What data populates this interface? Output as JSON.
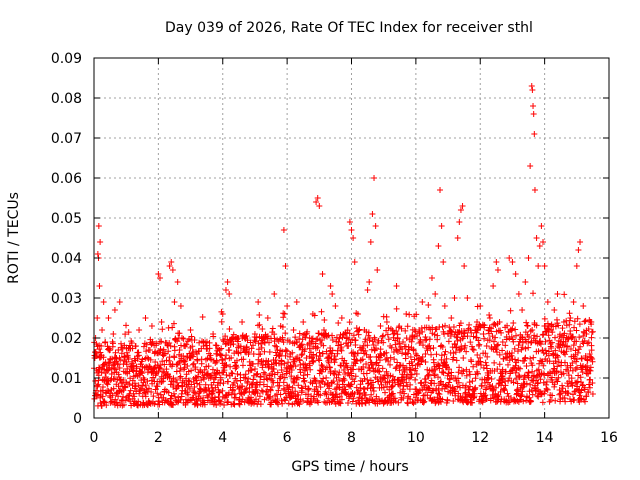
{
  "chart_data": {
    "type": "scatter",
    "title": "Day 039 of 2026, Rate Of TEC Index for receiver sthl",
    "xlabel": "GPS time / hours",
    "ylabel": "ROTI / TECUs",
    "xlim": [
      0,
      16
    ],
    "ylim": [
      0,
      0.09
    ],
    "x_ticks": [
      0,
      2,
      4,
      6,
      8,
      10,
      12,
      14,
      16
    ],
    "y_ticks": [
      0,
      0.01,
      0.02,
      0.03,
      0.04,
      0.05,
      0.06,
      0.07,
      0.08,
      0.09
    ],
    "x_tick_labels": [
      "0",
      "2",
      "4",
      "6",
      "8",
      "10",
      "12",
      "14",
      "16"
    ],
    "y_tick_labels": [
      "0",
      "0.01",
      "0.02",
      "0.03",
      "0.04",
      "0.05",
      "0.06",
      "0.07",
      "0.08",
      "0.09"
    ],
    "grid": true,
    "marker": "+",
    "color": "#ff0000",
    "series": [
      {
        "name": "ROTI",
        "points": [
          [
            0.02,
            0.015
          ],
          [
            0.05,
            0.02
          ],
          [
            0.08,
            0.012
          ],
          [
            0.1,
            0.025
          ],
          [
            0.12,
            0.041
          ],
          [
            0.14,
            0.04
          ],
          [
            0.15,
            0.048
          ],
          [
            0.17,
            0.033
          ],
          [
            0.19,
            0.044
          ],
          [
            0.22,
            0.018
          ],
          [
            0.25,
            0.022
          ],
          [
            0.3,
            0.029
          ],
          [
            0.35,
            0.019
          ],
          [
            0.4,
            0.013
          ],
          [
            0.45,
            0.025
          ],
          [
            0.5,
            0.017
          ],
          [
            0.55,
            0.011
          ],
          [
            0.6,
            0.021
          ],
          [
            0.65,
            0.027
          ],
          [
            0.7,
            0.015
          ],
          [
            0.8,
            0.029
          ],
          [
            0.9,
            0.009
          ],
          [
            1.0,
            0.014
          ],
          [
            1.1,
            0.006
          ],
          [
            1.2,
            0.012
          ],
          [
            1.3,
            0.018
          ],
          [
            1.4,
            0.022
          ],
          [
            1.5,
            0.008
          ],
          [
            1.6,
            0.025
          ],
          [
            1.7,
            0.017
          ],
          [
            1.8,
            0.023
          ],
          [
            1.9,
            0.014
          ],
          [
            2.0,
            0.036
          ],
          [
            2.05,
            0.035
          ],
          [
            2.1,
            0.024
          ],
          [
            2.2,
            0.016
          ],
          [
            2.3,
            0.011
          ],
          [
            2.35,
            0.038
          ],
          [
            2.4,
            0.039
          ],
          [
            2.45,
            0.037
          ],
          [
            2.5,
            0.029
          ],
          [
            2.6,
            0.034
          ],
          [
            2.7,
            0.028
          ],
          [
            2.8,
            0.018
          ],
          [
            2.9,
            0.013
          ],
          [
            3.0,
            0.022
          ],
          [
            3.1,
            0.009
          ],
          [
            3.2,
            0.016
          ],
          [
            3.3,
            0.012
          ],
          [
            3.4,
            0.019
          ],
          [
            3.5,
            0.007
          ],
          [
            3.6,
            0.015
          ],
          [
            3.7,
            0.021
          ],
          [
            3.8,
            0.011
          ],
          [
            3.9,
            0.017
          ],
          [
            4.0,
            0.026
          ],
          [
            4.1,
            0.032
          ],
          [
            4.15,
            0.034
          ],
          [
            4.2,
            0.031
          ],
          [
            4.3,
            0.02
          ],
          [
            4.4,
            0.013
          ],
          [
            4.5,
            0.018
          ],
          [
            4.6,
            0.024
          ],
          [
            4.7,
            0.01
          ],
          [
            4.8,
            0.016
          ],
          [
            4.9,
            0.012
          ],
          [
            5.0,
            0.021
          ],
          [
            5.1,
            0.029
          ],
          [
            5.2,
            0.014
          ],
          [
            5.3,
            0.019
          ],
          [
            5.4,
            0.025
          ],
          [
            5.5,
            0.011
          ],
          [
            5.6,
            0.031
          ],
          [
            5.7,
            0.017
          ],
          [
            5.8,
            0.023
          ],
          [
            5.9,
            0.047
          ],
          [
            5.95,
            0.038
          ],
          [
            6.0,
            0.028
          ],
          [
            6.1,
            0.016
          ],
          [
            6.2,
            0.022
          ],
          [
            6.3,
            0.029
          ],
          [
            6.4,
            0.018
          ],
          [
            6.5,
            0.024
          ],
          [
            6.6,
            0.015
          ],
          [
            6.7,
            0.02
          ],
          [
            6.8,
            0.026
          ],
          [
            6.9,
            0.054
          ],
          [
            6.95,
            0.055
          ],
          [
            7.0,
            0.053
          ],
          [
            7.1,
            0.036
          ],
          [
            7.2,
            0.021
          ],
          [
            7.3,
            0.015
          ],
          [
            7.35,
            0.033
          ],
          [
            7.4,
            0.031
          ],
          [
            7.5,
            0.028
          ],
          [
            7.6,
            0.019
          ],
          [
            7.7,
            0.025
          ],
          [
            7.8,
            0.011
          ],
          [
            7.9,
            0.018
          ],
          [
            7.95,
            0.049
          ],
          [
            8.0,
            0.047
          ],
          [
            8.05,
            0.045
          ],
          [
            8.1,
            0.039
          ],
          [
            8.2,
            0.026
          ],
          [
            8.3,
            0.017
          ],
          [
            8.4,
            0.022
          ],
          [
            8.5,
            0.032
          ],
          [
            8.55,
            0.034
          ],
          [
            8.6,
            0.044
          ],
          [
            8.65,
            0.051
          ],
          [
            8.7,
            0.06
          ],
          [
            8.75,
            0.048
          ],
          [
            8.8,
            0.037
          ],
          [
            8.9,
            0.023
          ],
          [
            9.0,
            0.016
          ],
          [
            9.1,
            0.024
          ],
          [
            9.2,
            0.018
          ],
          [
            9.3,
            0.021
          ],
          [
            9.4,
            0.033
          ],
          [
            9.5,
            0.013
          ],
          [
            9.6,
            0.019
          ],
          [
            9.7,
            0.026
          ],
          [
            9.8,
            0.012
          ],
          [
            9.9,
            0.02
          ],
          [
            10.0,
            0.016
          ],
          [
            10.1,
            0.022
          ],
          [
            10.2,
            0.029
          ],
          [
            10.3,
            0.014
          ],
          [
            10.4,
            0.025
          ],
          [
            10.5,
            0.035
          ],
          [
            10.6,
            0.031
          ],
          [
            10.7,
            0.043
          ],
          [
            10.75,
            0.057
          ],
          [
            10.8,
            0.048
          ],
          [
            10.85,
            0.039
          ],
          [
            10.9,
            0.028
          ],
          [
            11.0,
            0.021
          ],
          [
            11.1,
            0.025
          ],
          [
            11.2,
            0.03
          ],
          [
            11.3,
            0.045
          ],
          [
            11.35,
            0.049
          ],
          [
            11.4,
            0.052
          ],
          [
            11.45,
            0.053
          ],
          [
            11.5,
            0.038
          ],
          [
            11.6,
            0.03
          ],
          [
            11.7,
            0.022
          ],
          [
            11.8,
            0.017
          ],
          [
            11.9,
            0.024
          ],
          [
            12.0,
            0.028
          ],
          [
            12.1,
            0.021
          ],
          [
            12.2,
            0.018
          ],
          [
            12.3,
            0.025
          ],
          [
            12.4,
            0.033
          ],
          [
            12.5,
            0.039
          ],
          [
            12.55,
            0.037
          ],
          [
            12.6,
            0.024
          ],
          [
            12.7,
            0.019
          ],
          [
            12.8,
            0.015
          ],
          [
            12.9,
            0.04
          ],
          [
            13.0,
            0.039
          ],
          [
            13.1,
            0.036
          ],
          [
            13.2,
            0.031
          ],
          [
            13.3,
            0.027
          ],
          [
            13.4,
            0.034
          ],
          [
            13.5,
            0.04
          ],
          [
            13.55,
            0.063
          ],
          [
            13.6,
            0.083
          ],
          [
            13.62,
            0.082
          ],
          [
            13.64,
            0.078
          ],
          [
            13.66,
            0.076
          ],
          [
            13.68,
            0.071
          ],
          [
            13.7,
            0.057
          ],
          [
            13.75,
            0.045
          ],
          [
            13.8,
            0.038
          ],
          [
            13.85,
            0.043
          ],
          [
            13.9,
            0.048
          ],
          [
            13.95,
            0.044
          ],
          [
            14.0,
            0.038
          ],
          [
            14.1,
            0.029
          ],
          [
            14.2,
            0.022
          ],
          [
            14.3,
            0.027
          ],
          [
            14.4,
            0.031
          ],
          [
            14.5,
            0.019
          ],
          [
            14.6,
            0.024
          ],
          [
            14.7,
            0.018
          ],
          [
            14.8,
            0.025
          ],
          [
            14.9,
            0.029
          ],
          [
            15.0,
            0.038
          ],
          [
            15.05,
            0.042
          ],
          [
            15.1,
            0.044
          ],
          [
            15.2,
            0.028
          ],
          [
            15.3,
            0.021
          ],
          [
            15.4,
            0.016
          ],
          [
            15.45,
            0.024
          ],
          [
            15.5,
            0.006
          ]
        ]
      }
    ],
    "band": {
      "description": "dense scatter of ROTI values spanning the whole time range",
      "x": [
        0,
        15.5
      ],
      "low": [
        0.003,
        0.004
      ],
      "high": [
        0.019,
        0.025
      ]
    }
  }
}
